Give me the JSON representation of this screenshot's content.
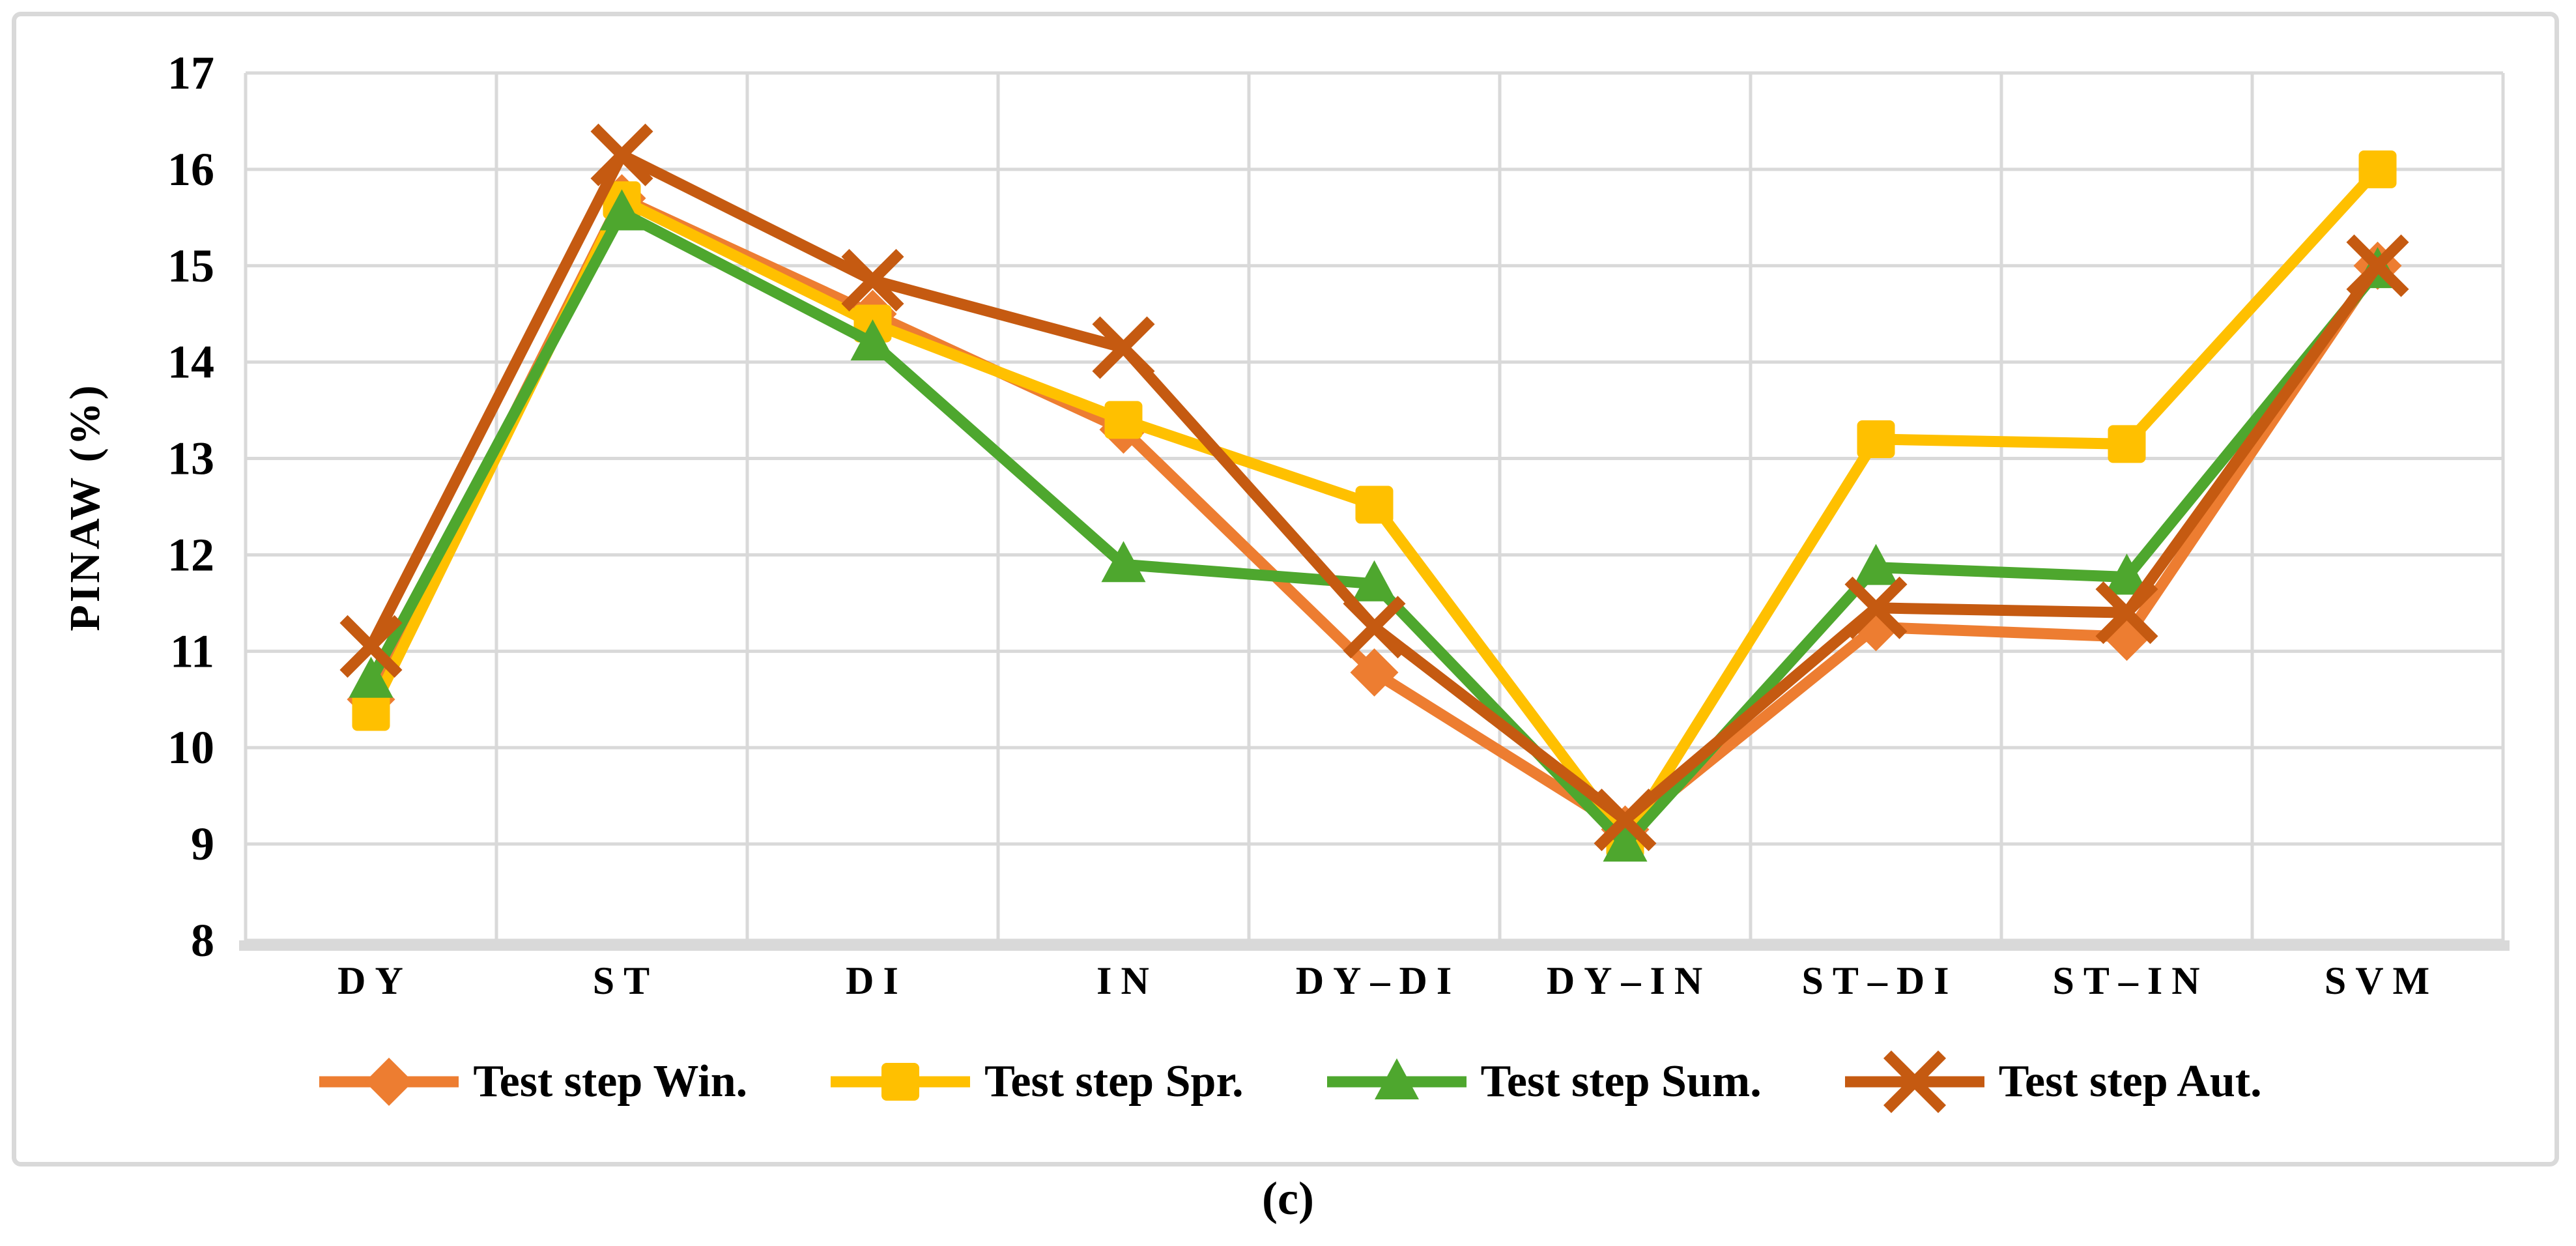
{
  "figure": {
    "caption": "(c)"
  },
  "chart_data": {
    "type": "line",
    "title": "",
    "xlabel": "",
    "ylabel": "PINAW (%)",
    "ylim": [
      8,
      17
    ],
    "ytick_step": 1,
    "grid": true,
    "legend_position": "bottom",
    "gridline_color": "#d9d9d9",
    "categories": [
      "DY",
      "ST",
      "DI",
      "IN",
      "DY–DI",
      "DY–IN",
      "ST–DI",
      "ST–IN",
      "SVM"
    ],
    "series": [
      {
        "name": "Test step Win.",
        "color": "#ED7D31",
        "marker": "diamond",
        "values": [
          10.5,
          15.7,
          14.5,
          13.3,
          10.78,
          9.15,
          11.25,
          11.15,
          15.0
        ]
      },
      {
        "name": "Test step Spr.",
        "color": "#FFC000",
        "marker": "square",
        "values": [
          10.37,
          15.68,
          14.4,
          13.4,
          12.52,
          9.05,
          13.2,
          13.15,
          16.0
        ]
      },
      {
        "name": "Test step Sum.",
        "color": "#4EA72E",
        "marker": "triangle",
        "values": [
          10.7,
          15.55,
          14.2,
          11.9,
          11.7,
          9.0,
          11.87,
          11.77,
          14.95
        ]
      },
      {
        "name": "Test step Aut.",
        "color": "#C55A11",
        "marker": "x",
        "values": [
          11.05,
          16.15,
          14.85,
          14.15,
          11.25,
          9.25,
          11.45,
          11.4,
          15.0
        ]
      }
    ]
  }
}
